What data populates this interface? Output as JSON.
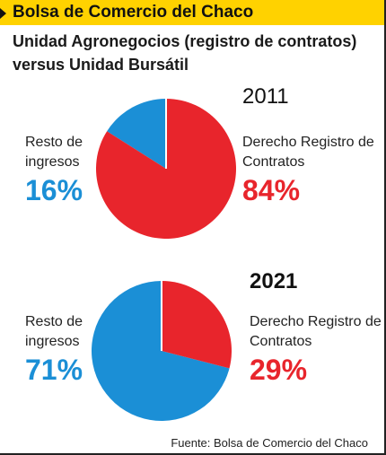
{
  "header": "Bolsa de Comercio del Chaco",
  "title": "Unidad Agronegocios (registro de contratos) versus Unidad Bursátil",
  "source": "Fuente: Bolsa de Comercio del Chaco",
  "chart_data": [
    {
      "type": "pie",
      "title": "2011",
      "categories": [
        "Resto de ingresos",
        "Derecho Registro de Contratos"
      ],
      "values": [
        16,
        84
      ],
      "value_labels": [
        "16%",
        "84%"
      ],
      "colors": [
        "#1b8fd6",
        "#e8252c"
      ]
    },
    {
      "type": "pie",
      "title": "2021",
      "categories": [
        "Resto de ingresos",
        "Derecho Registro de Contratos"
      ],
      "values": [
        71,
        29
      ],
      "value_labels": [
        "71%",
        "29%"
      ],
      "colors": [
        "#1b8fd6",
        "#e8252c"
      ]
    }
  ]
}
